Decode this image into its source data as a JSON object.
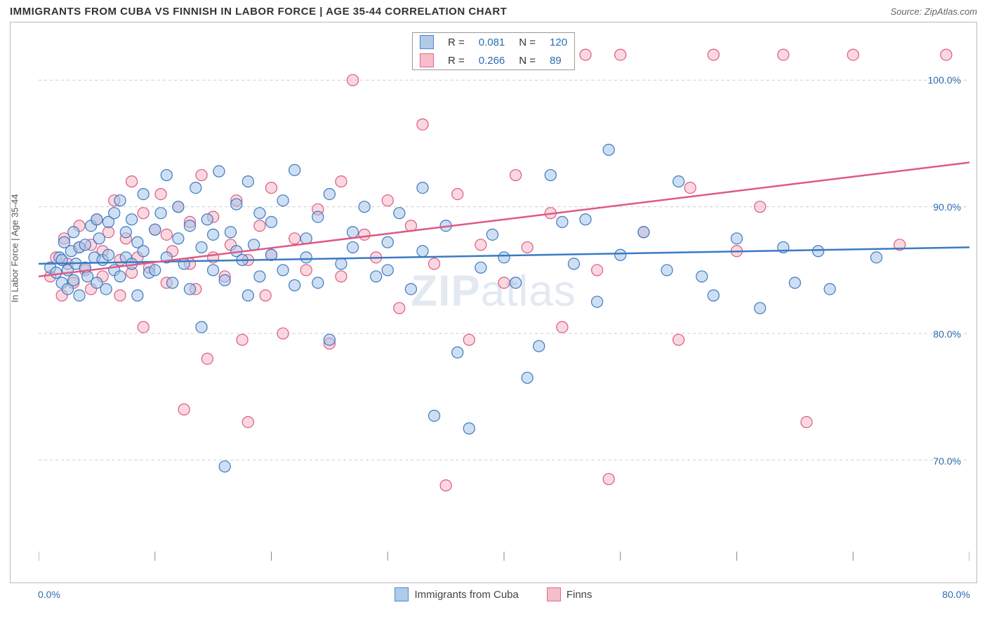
{
  "title": "IMMIGRANTS FROM CUBA VS FINNISH IN LABOR FORCE | AGE 35-44 CORRELATION CHART",
  "source_label": "Source: ZipAtlas.com",
  "watermark": "ZIPatlas",
  "y_axis": {
    "title": "In Labor Force | Age 35-44",
    "ticks": [
      {
        "value": 70.0,
        "label": "70.0%"
      },
      {
        "value": 80.0,
        "label": "80.0%"
      },
      {
        "value": 90.0,
        "label": "90.0%"
      },
      {
        "value": 100.0,
        "label": "100.0%"
      }
    ],
    "min": 62.0,
    "max": 104.0
  },
  "x_axis": {
    "min": 0.0,
    "max": 80.0,
    "left_label": "0.0%",
    "right_label": "80.0%",
    "tick_positions": [
      0,
      10,
      20,
      30,
      40,
      50,
      60,
      70,
      80
    ]
  },
  "series": {
    "cuba": {
      "label": "Immigrants from Cuba",
      "color_fill": "#a8c5e8",
      "color_stroke": "#3b7ac4",
      "fill_opacity": 0.55,
      "marker_radius": 8,
      "R": "0.081",
      "N": "120",
      "trend": {
        "y_at_xmin": 85.5,
        "y_at_xmax": 86.8
      },
      "points": [
        [
          1,
          85.2
        ],
        [
          1.5,
          84.8
        ],
        [
          1.8,
          86.0
        ],
        [
          2,
          84.0
        ],
        [
          2,
          85.8
        ],
        [
          2.2,
          87.2
        ],
        [
          2.5,
          85.0
        ],
        [
          2.5,
          83.5
        ],
        [
          2.8,
          86.5
        ],
        [
          3,
          88.0
        ],
        [
          3,
          84.2
        ],
        [
          3.2,
          85.5
        ],
        [
          3.5,
          86.8
        ],
        [
          3.5,
          83.0
        ],
        [
          4,
          87.0
        ],
        [
          4,
          85.2
        ],
        [
          4.2,
          84.5
        ],
        [
          4.5,
          88.5
        ],
        [
          4.8,
          86.0
        ],
        [
          5,
          89.0
        ],
        [
          5,
          84.0
        ],
        [
          5.2,
          87.5
        ],
        [
          5.5,
          85.8
        ],
        [
          5.8,
          83.5
        ],
        [
          6,
          86.2
        ],
        [
          6,
          88.8
        ],
        [
          6.5,
          85.0
        ],
        [
          6.5,
          89.5
        ],
        [
          7,
          90.5
        ],
        [
          7,
          84.5
        ],
        [
          7.5,
          86.0
        ],
        [
          7.5,
          88.0
        ],
        [
          8,
          89.0
        ],
        [
          8,
          85.5
        ],
        [
          8.5,
          87.2
        ],
        [
          8.5,
          83.0
        ],
        [
          9,
          91.0
        ],
        [
          9,
          86.5
        ],
        [
          9.5,
          84.8
        ],
        [
          10,
          88.2
        ],
        [
          10,
          85.0
        ],
        [
          10.5,
          89.5
        ],
        [
          11,
          92.5
        ],
        [
          11,
          86.0
        ],
        [
          11.5,
          84.0
        ],
        [
          12,
          87.5
        ],
        [
          12,
          90.0
        ],
        [
          12.5,
          85.5
        ],
        [
          13,
          88.5
        ],
        [
          13,
          83.5
        ],
        [
          13.5,
          91.5
        ],
        [
          14,
          86.8
        ],
        [
          14,
          80.5
        ],
        [
          14.5,
          89.0
        ],
        [
          15,
          85.0
        ],
        [
          15,
          87.8
        ],
        [
          15.5,
          92.8
        ],
        [
          16,
          84.2
        ],
        [
          16,
          69.5
        ],
        [
          16.5,
          88.0
        ],
        [
          17,
          86.5
        ],
        [
          17,
          90.2
        ],
        [
          17.5,
          85.8
        ],
        [
          18,
          83.0
        ],
        [
          18,
          92.0
        ],
        [
          18.5,
          87.0
        ],
        [
          19,
          89.5
        ],
        [
          19,
          84.5
        ],
        [
          20,
          86.2
        ],
        [
          20,
          88.8
        ],
        [
          21,
          90.5
        ],
        [
          21,
          85.0
        ],
        [
          22,
          92.9
        ],
        [
          22,
          83.8
        ],
        [
          23,
          87.5
        ],
        [
          23,
          86.0
        ],
        [
          24,
          89.2
        ],
        [
          24,
          84.0
        ],
        [
          25,
          91.0
        ],
        [
          25,
          79.5
        ],
        [
          26,
          85.5
        ],
        [
          27,
          88.0
        ],
        [
          27,
          86.8
        ],
        [
          28,
          90.0
        ],
        [
          29,
          84.5
        ],
        [
          30,
          87.2
        ],
        [
          30,
          85.0
        ],
        [
          31,
          89.5
        ],
        [
          32,
          83.5
        ],
        [
          33,
          86.5
        ],
        [
          33,
          91.5
        ],
        [
          34,
          73.5
        ],
        [
          35,
          88.5
        ],
        [
          36,
          78.5
        ],
        [
          37,
          72.5
        ],
        [
          38,
          85.2
        ],
        [
          39,
          87.8
        ],
        [
          40,
          86.0
        ],
        [
          41,
          84.0
        ],
        [
          42,
          76.5
        ],
        [
          43,
          79.0
        ],
        [
          44,
          92.5
        ],
        [
          45,
          88.8
        ],
        [
          46,
          85.5
        ],
        [
          47,
          89.0
        ],
        [
          48,
          82.5
        ],
        [
          49,
          94.5
        ],
        [
          50,
          86.2
        ],
        [
          52,
          88.0
        ],
        [
          54,
          85.0
        ],
        [
          55,
          92.0
        ],
        [
          57,
          84.5
        ],
        [
          58,
          83.0
        ],
        [
          60,
          87.5
        ],
        [
          62,
          82.0
        ],
        [
          64,
          86.8
        ],
        [
          65,
          84.0
        ],
        [
          67,
          86.5
        ],
        [
          68,
          83.5
        ],
        [
          72,
          86.0
        ]
      ]
    },
    "finns": {
      "label": "Finns",
      "color_fill": "#f4b8c5",
      "color_stroke": "#de5a82",
      "fill_opacity": 0.55,
      "marker_radius": 8,
      "R": "0.266",
      "N": "89",
      "trend": {
        "y_at_xmin": 84.5,
        "y_at_xmax": 93.5
      },
      "points": [
        [
          1,
          84.5
        ],
        [
          1.5,
          86.0
        ],
        [
          2,
          83.0
        ],
        [
          2.2,
          87.5
        ],
        [
          2.5,
          85.5
        ],
        [
          3,
          84.0
        ],
        [
          3.5,
          86.8
        ],
        [
          3.5,
          88.5
        ],
        [
          4,
          85.0
        ],
        [
          4.5,
          87.0
        ],
        [
          4.5,
          83.5
        ],
        [
          5,
          89.0
        ],
        [
          5.5,
          84.5
        ],
        [
          5.5,
          86.5
        ],
        [
          6,
          88.0
        ],
        [
          6.5,
          90.5
        ],
        [
          7,
          85.8
        ],
        [
          7,
          83.0
        ],
        [
          7.5,
          87.5
        ],
        [
          8,
          92.0
        ],
        [
          8,
          84.8
        ],
        [
          8.5,
          86.0
        ],
        [
          9,
          89.5
        ],
        [
          9,
          80.5
        ],
        [
          9.5,
          85.2
        ],
        [
          10,
          88.2
        ],
        [
          10.5,
          91.0
        ],
        [
          11,
          84.0
        ],
        [
          11,
          87.8
        ],
        [
          11.5,
          86.5
        ],
        [
          12,
          90.0
        ],
        [
          12.5,
          74.0
        ],
        [
          13,
          85.5
        ],
        [
          13,
          88.8
        ],
        [
          13.5,
          83.5
        ],
        [
          14,
          92.5
        ],
        [
          14.5,
          78.0
        ],
        [
          15,
          86.0
        ],
        [
          15,
          89.2
        ],
        [
          16,
          84.5
        ],
        [
          16.5,
          87.0
        ],
        [
          17,
          90.5
        ],
        [
          17.5,
          79.5
        ],
        [
          18,
          85.8
        ],
        [
          18,
          73.0
        ],
        [
          19,
          88.5
        ],
        [
          19.5,
          83.0
        ],
        [
          20,
          91.5
        ],
        [
          20,
          86.2
        ],
        [
          21,
          80.0
        ],
        [
          22,
          87.5
        ],
        [
          23,
          85.0
        ],
        [
          24,
          89.8
        ],
        [
          25,
          79.2
        ],
        [
          26,
          92.0
        ],
        [
          26,
          84.5
        ],
        [
          27,
          100.0
        ],
        [
          28,
          87.8
        ],
        [
          29,
          86.0
        ],
        [
          30,
          90.5
        ],
        [
          31,
          82.0
        ],
        [
          32,
          88.5
        ],
        [
          33,
          96.5
        ],
        [
          34,
          85.5
        ],
        [
          35,
          68.0
        ],
        [
          36,
          91.0
        ],
        [
          37,
          79.5
        ],
        [
          38,
          87.0
        ],
        [
          39,
          102.0
        ],
        [
          40,
          84.0
        ],
        [
          41,
          92.5
        ],
        [
          42,
          86.8
        ],
        [
          44,
          89.5
        ],
        [
          45,
          80.5
        ],
        [
          47,
          102.0
        ],
        [
          48,
          85.0
        ],
        [
          49,
          68.5
        ],
        [
          50,
          102.0
        ],
        [
          52,
          88.0
        ],
        [
          55,
          79.5
        ],
        [
          56,
          91.5
        ],
        [
          58,
          102.0
        ],
        [
          60,
          86.5
        ],
        [
          62,
          90.0
        ],
        [
          64,
          102.0
        ],
        [
          66,
          73.0
        ],
        [
          70,
          102.0
        ],
        [
          74,
          87.0
        ],
        [
          78,
          102.0
        ]
      ]
    }
  },
  "legend_top": {
    "r_label": "R =",
    "n_label": "N ="
  },
  "colors": {
    "grid": "#cccccc",
    "axis_text": "#2b6cb0",
    "title_text": "#333333",
    "border": "#bbbbbb"
  }
}
